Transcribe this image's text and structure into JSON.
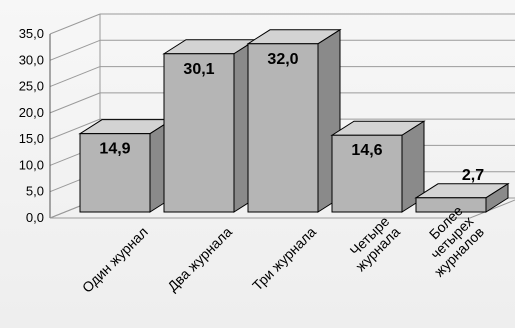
{
  "chart_data": {
    "type": "bar",
    "categories": [
      [
        "Один журнал"
      ],
      [
        "Два журнала"
      ],
      [
        "Три журнала"
      ],
      [
        "Четыре",
        "журнала"
      ],
      [
        "Более",
        "четырех",
        "журналов"
      ]
    ],
    "values": [
      14.9,
      30.1,
      32.0,
      14.6,
      2.7
    ],
    "data_labels": [
      "14,9",
      "30,1",
      "32,0",
      "14,6",
      "2,7"
    ],
    "ylim": [
      0,
      35
    ],
    "yticks": [
      "0,0",
      "5,0",
      "10,0",
      "15,0",
      "20,0",
      "25,0",
      "30,0",
      "35,0"
    ],
    "grid": true,
    "style": "3d-column",
    "colors": {
      "bar_front": "#b5b5b5",
      "bar_top": "#d3d3d3",
      "bar_side": "#8a8a8a",
      "grid": "#9a9a9a"
    }
  }
}
